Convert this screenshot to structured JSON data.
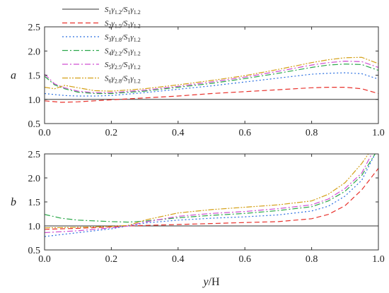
{
  "chart_data": [
    {
      "type": "line",
      "panel_label": "a",
      "xlim": [
        0,
        1.0
      ],
      "ylim": [
        0.5,
        2.5
      ],
      "xticks": [
        "0.0",
        "0.2",
        "0.4",
        "0.6",
        "0.8",
        "1.0"
      ],
      "yticks": [
        "0.5",
        "1.0",
        "1.5",
        "2.0",
        "2.5"
      ],
      "legend": {
        "placement": "top-left",
        "entries": [
          {
            "main": "S",
            "sub1": "1",
            "main2": "γ",
            "sub2": "1.2",
            "sep": "/S",
            "sub3": "1",
            "main3": "γ",
            "sub4": "1.2",
            "color": "#333333",
            "dash": "solid"
          },
          {
            "main": "S",
            "sub1": "2",
            "main2": "γ",
            "sub2": "1.5",
            "sep": "/S",
            "sub3": "1",
            "main3": "γ",
            "sub4": "1.2",
            "color": "#e8322c",
            "dash": "dash"
          },
          {
            "main": "S",
            "sub1": "3",
            "main2": "γ",
            "sub2": "1.8",
            "sep": "/S",
            "sub3": "1",
            "main3": "γ",
            "sub4": "1.2",
            "color": "#2a6fe0",
            "dash": "dot"
          },
          {
            "main": "S",
            "sub1": "4",
            "main2": "γ",
            "sub2": "2.2",
            "sep": "/S",
            "sub3": "1",
            "main3": "γ",
            "sub4": "1.2",
            "color": "#2ba84a",
            "dash": "dashdot"
          },
          {
            "main": "S",
            "sub1": "5",
            "main2": "γ",
            "sub2": "2.5",
            "sep": "/S",
            "sub3": "1",
            "main3": "γ",
            "sub4": "1.2",
            "color": "#cf4fd0",
            "dash": "dashdot"
          },
          {
            "main": "S",
            "sub1": "6",
            "main2": "γ",
            "sub2": "2.8",
            "sep": "/S",
            "sub3": "1",
            "main3": "γ",
            "sub4": "1.2",
            "color": "#d4a017",
            "dash": "dashdotdot"
          }
        ]
      },
      "series": [
        {
          "x": [
            0.0,
            1.0
          ],
          "y": [
            1.0,
            1.0
          ]
        },
        {
          "x": [
            0.0,
            0.05,
            0.1,
            0.15,
            0.2,
            0.3,
            0.4,
            0.5,
            0.6,
            0.7,
            0.8,
            0.85,
            0.9,
            0.95,
            1.0
          ],
          "y": [
            0.97,
            0.94,
            0.95,
            0.97,
            0.99,
            1.03,
            1.07,
            1.12,
            1.16,
            1.2,
            1.24,
            1.25,
            1.25,
            1.22,
            1.12
          ]
        },
        {
          "x": [
            0.0,
            0.03,
            0.06,
            0.1,
            0.15,
            0.2,
            0.3,
            0.4,
            0.5,
            0.6,
            0.7,
            0.8,
            0.85,
            0.9,
            0.95,
            1.0
          ],
          "y": [
            1.12,
            1.1,
            1.08,
            1.07,
            1.07,
            1.08,
            1.14,
            1.21,
            1.28,
            1.36,
            1.44,
            1.52,
            1.54,
            1.55,
            1.53,
            1.42
          ]
        },
        {
          "x": [
            0.0,
            0.03,
            0.06,
            0.1,
            0.15,
            0.2,
            0.3,
            0.4,
            0.5,
            0.6,
            0.7,
            0.8,
            0.85,
            0.9,
            0.95,
            1.0
          ],
          "y": [
            1.48,
            1.3,
            1.22,
            1.15,
            1.12,
            1.12,
            1.17,
            1.25,
            1.33,
            1.43,
            1.54,
            1.66,
            1.71,
            1.73,
            1.72,
            1.6
          ]
        },
        {
          "x": [
            0.0,
            0.03,
            0.06,
            0.1,
            0.15,
            0.2,
            0.3,
            0.4,
            0.5,
            0.6,
            0.7,
            0.8,
            0.85,
            0.9,
            0.95,
            1.0
          ],
          "y": [
            1.52,
            1.32,
            1.24,
            1.17,
            1.14,
            1.14,
            1.19,
            1.27,
            1.36,
            1.46,
            1.58,
            1.71,
            1.76,
            1.79,
            1.78,
            1.66
          ]
        },
        {
          "x": [
            0.0,
            0.03,
            0.06,
            0.1,
            0.15,
            0.2,
            0.3,
            0.4,
            0.5,
            0.6,
            0.7,
            0.8,
            0.85,
            0.9,
            0.95,
            1.0
          ],
          "y": [
            1.25,
            1.22,
            1.29,
            1.24,
            1.18,
            1.17,
            1.22,
            1.3,
            1.39,
            1.49,
            1.62,
            1.76,
            1.82,
            1.86,
            1.87,
            1.74
          ]
        }
      ]
    },
    {
      "type": "line",
      "panel_label": "b",
      "xlim": [
        0,
        1.0
      ],
      "ylim": [
        0.5,
        2.5
      ],
      "xticks": [
        "0.0",
        "0.2",
        "0.4",
        "0.6",
        "0.8",
        "1.0"
      ],
      "yticks": [
        "0.5",
        "1.0",
        "1.5",
        "2.0",
        "2.5"
      ],
      "xlabel_italic": "y",
      "xlabel_rest": "/H",
      "series": [
        {
          "x": [
            0.0,
            1.0
          ],
          "y": [
            1.0,
            1.0
          ]
        },
        {
          "x": [
            0.0,
            0.1,
            0.2,
            0.25,
            0.3,
            0.4,
            0.5,
            0.6,
            0.7,
            0.8,
            0.85,
            0.9,
            0.95,
            1.0
          ],
          "y": [
            0.93,
            0.95,
            0.98,
            1.0,
            1.01,
            1.03,
            1.05,
            1.07,
            1.09,
            1.15,
            1.24,
            1.42,
            1.75,
            2.2
          ]
        },
        {
          "x": [
            0.0,
            0.1,
            0.2,
            0.25,
            0.3,
            0.4,
            0.5,
            0.6,
            0.7,
            0.8,
            0.85,
            0.9,
            0.95,
            0.99
          ],
          "y": [
            0.78,
            0.86,
            0.94,
            1.0,
            1.06,
            1.12,
            1.16,
            1.19,
            1.23,
            1.31,
            1.41,
            1.62,
            1.95,
            2.5
          ]
        },
        {
          "x": [
            0.0,
            0.05,
            0.1,
            0.2,
            0.25,
            0.3,
            0.4,
            0.5,
            0.6,
            0.7,
            0.8,
            0.85,
            0.9,
            0.95,
            0.99
          ],
          "y": [
            1.24,
            1.16,
            1.12,
            1.09,
            1.08,
            1.1,
            1.17,
            1.22,
            1.26,
            1.32,
            1.4,
            1.52,
            1.72,
            2.05,
            2.5
          ]
        },
        {
          "x": [
            0.0,
            0.1,
            0.2,
            0.25,
            0.3,
            0.4,
            0.5,
            0.6,
            0.7,
            0.8,
            0.85,
            0.9,
            0.95,
            0.98
          ],
          "y": [
            0.86,
            0.9,
            0.96,
            1.0,
            1.08,
            1.2,
            1.26,
            1.3,
            1.36,
            1.44,
            1.56,
            1.78,
            2.1,
            2.5
          ]
        },
        {
          "x": [
            0.0,
            0.1,
            0.2,
            0.25,
            0.3,
            0.4,
            0.5,
            0.6,
            0.7,
            0.8,
            0.85,
            0.9,
            0.95,
            0.97
          ],
          "y": [
            0.96,
            0.97,
            0.99,
            1.01,
            1.12,
            1.27,
            1.34,
            1.39,
            1.44,
            1.52,
            1.66,
            1.9,
            2.3,
            2.5
          ]
        }
      ]
    }
  ]
}
